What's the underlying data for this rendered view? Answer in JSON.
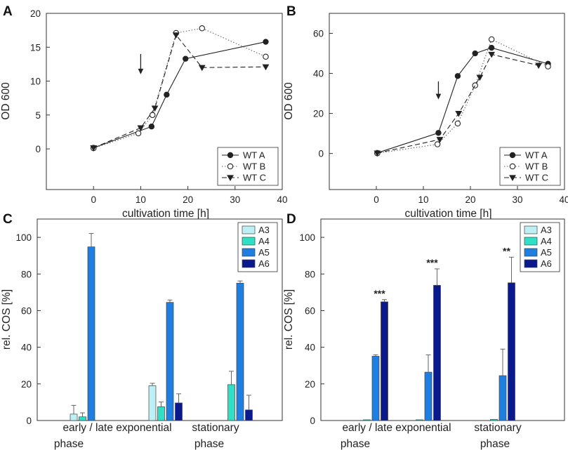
{
  "figure": {
    "colors": {
      "axis": "#333333",
      "line": "#222222",
      "A3": "#bdf0f4",
      "A4": "#2ee0c6",
      "A5": "#1e7fe0",
      "A6": "#0a1a8c"
    }
  },
  "chart_data": [
    {
      "panel": "A",
      "type": "line",
      "xlabel": "cultivation time [h]",
      "ylabel": "OD 600",
      "xlim": [
        -10,
        40
      ],
      "ylim": [
        -6,
        20
      ],
      "xticks": [
        "0",
        "10",
        "20",
        "30",
        "40"
      ],
      "yticks": [
        "0",
        "5",
        "10",
        "15",
        "20"
      ],
      "arrow_at": {
        "x": 10,
        "y_from": 14,
        "y_to": 11
      },
      "legend_position": "bottom-right",
      "series": [
        {
          "name": "WT A",
          "marker": "filled-circle",
          "line": "solid",
          "x": [
            0,
            12.3,
            15.5,
            19.5,
            36.5
          ],
          "y": [
            0.15,
            3.3,
            8.0,
            13.3,
            15.8
          ]
        },
        {
          "name": "WT B",
          "marker": "open-circle",
          "line": "dotted",
          "x": [
            0,
            9.5,
            12.5,
            17.5,
            23,
            36.5
          ],
          "y": [
            0.1,
            2.3,
            5.0,
            17.1,
            17.8,
            13.6
          ]
        },
        {
          "name": "WT C",
          "marker": "filled-triangle-down",
          "line": "dashed",
          "x": [
            0,
            10,
            13,
            17.5,
            23,
            36.5
          ],
          "y": [
            0.15,
            3.1,
            6.0,
            16.8,
            12.0,
            12.1
          ]
        }
      ]
    },
    {
      "panel": "B",
      "type": "line",
      "xlabel": "cultivation time [h]",
      "ylabel": "OD 600",
      "xlim": [
        -10,
        40
      ],
      "ylim": [
        -18,
        70
      ],
      "xticks": [
        "0",
        "10",
        "20",
        "30",
        "40"
      ],
      "yticks": [
        "0",
        "20",
        "40",
        "60"
      ],
      "arrow_at": {
        "x": 13.2,
        "y_from": 36,
        "y_to": 27
      },
      "legend_position": "bottom-right",
      "series": [
        {
          "name": "WT A",
          "marker": "filled-circle",
          "line": "solid",
          "x": [
            0.2,
            13.2,
            17.3,
            21,
            24.5,
            36.5
          ],
          "y": [
            0.3,
            10.3,
            38.7,
            50.0,
            52.8,
            44.8
          ]
        },
        {
          "name": "WT B",
          "marker": "open-circle",
          "line": "dotted",
          "x": [
            0.2,
            13,
            17.3,
            21,
            24.5,
            36.5
          ],
          "y": [
            0.1,
            4.6,
            15.0,
            34.0,
            57.0,
            43.5
          ]
        },
        {
          "name": "WT C",
          "marker": "filled-triangle-down",
          "line": "dashed",
          "x": [
            0.2,
            13.5,
            17.5,
            22,
            24.5,
            34.5
          ],
          "y": [
            0.2,
            7.0,
            20.0,
            38.0,
            49.5,
            44.0
          ]
        }
      ]
    },
    {
      "panel": "C",
      "type": "bar",
      "ylabel": "rel. COS [%]",
      "ylim": [
        0,
        110
      ],
      "yticks": [
        "0",
        "20",
        "40",
        "60",
        "80",
        "100"
      ],
      "category_labels": [
        "early / late exponential",
        "stationary"
      ],
      "phase_labels": [
        "phase",
        "phase"
      ],
      "legend_position": "top-right",
      "series_names": [
        "A3",
        "A4",
        "A5",
        "A6"
      ],
      "groups": [
        {
          "values": [
            3.5,
            2.0,
            94.8,
            0
          ],
          "errors": [
            4.8,
            2.2,
            7.3,
            0
          ]
        },
        {
          "values": [
            19.0,
            7.5,
            64.5,
            9.6
          ],
          "errors": [
            1.3,
            2.6,
            1.3,
            5.0
          ]
        },
        {
          "values": [
            0,
            19.6,
            75.0,
            5.8
          ],
          "errors": [
            0,
            7.3,
            1.2,
            8.0
          ]
        }
      ],
      "significance": [
        "",
        "",
        ""
      ]
    },
    {
      "panel": "D",
      "type": "bar",
      "ylabel": "rel. COS [%]",
      "ylim": [
        0,
        110
      ],
      "yticks": [
        "0",
        "20",
        "40",
        "60",
        "80",
        "100"
      ],
      "category_labels": [
        "early / late exponential",
        "stationary"
      ],
      "phase_labels": [
        "phase",
        "phase"
      ],
      "legend_position": "top-right",
      "series_names": [
        "A3",
        "A4",
        "A5",
        "A6"
      ],
      "groups": [
        {
          "values": [
            0,
            0.4,
            35.1,
            64.8
          ],
          "errors": [
            0,
            0,
            0.8,
            1.2
          ]
        },
        {
          "values": [
            0,
            0.4,
            26.4,
            73.8
          ],
          "errors": [
            0,
            0,
            9.4,
            9.0
          ]
        },
        {
          "values": [
            0,
            0.6,
            24.5,
            75.2
          ],
          "errors": [
            0,
            0,
            14.5,
            14.0
          ]
        }
      ],
      "significance": [
        "***",
        "***",
        "**"
      ]
    }
  ],
  "panel_letters": [
    "A",
    "B",
    "C",
    "D"
  ]
}
